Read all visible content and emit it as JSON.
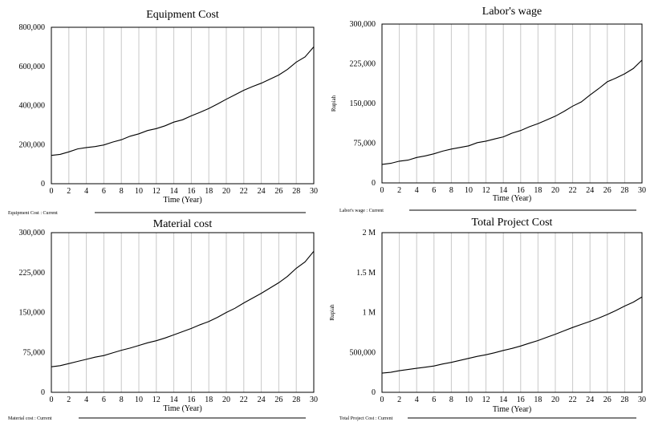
{
  "chart_data": [
    {
      "type": "line",
      "title": "Equipment Cost",
      "xlabel": "Time (Year)",
      "ylabel": "",
      "xlim": [
        0,
        30
      ],
      "ylim": [
        0,
        800000
      ],
      "x_ticks": [
        "0",
        "2",
        "4",
        "6",
        "8",
        "10",
        "12",
        "14",
        "16",
        "18",
        "20",
        "22",
        "24",
        "26",
        "28",
        "30"
      ],
      "y_ticks": [
        {
          "value": 0,
          "label": "0"
        },
        {
          "value": 200000,
          "label": "200,000"
        },
        {
          "value": 400000,
          "label": "400,000"
        },
        {
          "value": 600000,
          "label": "600,000"
        },
        {
          "value": 800000,
          "label": "800,000"
        }
      ],
      "grid": true,
      "legend": "Equipment Cost : Current",
      "x": [
        0,
        1,
        2,
        3,
        4,
        5,
        6,
        7,
        8,
        9,
        10,
        11,
        12,
        13,
        14,
        15,
        16,
        17,
        18,
        19,
        20,
        21,
        22,
        23,
        24,
        25,
        26,
        27,
        28,
        29,
        30
      ],
      "values": [
        145000,
        150000,
        163000,
        178000,
        185000,
        190000,
        198000,
        213000,
        225000,
        243000,
        255000,
        272000,
        282000,
        296000,
        315000,
        327000,
        347000,
        365000,
        385000,
        408000,
        432000,
        455000,
        478000,
        497000,
        514000,
        535000,
        556000,
        585000,
        622000,
        648000,
        700000
      ]
    },
    {
      "type": "line",
      "title": "Labor's wage",
      "xlabel": "Time (Year)",
      "ylabel": "Rupiah",
      "xlim": [
        0,
        30
      ],
      "ylim": [
        0,
        300000
      ],
      "x_ticks": [
        "0",
        "2",
        "4",
        "6",
        "8",
        "10",
        "12",
        "14",
        "16",
        "18",
        "20",
        "22",
        "24",
        "26",
        "28",
        "30"
      ],
      "y_ticks": [
        {
          "value": 0,
          "label": "0"
        },
        {
          "value": 75000,
          "label": "75,000"
        },
        {
          "value": 150000,
          "label": "150,000"
        },
        {
          "value": 225000,
          "label": "225,000"
        },
        {
          "value": 300000,
          "label": "300,000"
        }
      ],
      "grid": true,
      "legend": "Labor's wage : Current",
      "x": [
        0,
        1,
        2,
        3,
        4,
        5,
        6,
        7,
        8,
        9,
        10,
        11,
        12,
        13,
        14,
        15,
        16,
        17,
        18,
        19,
        20,
        21,
        22,
        23,
        24,
        25,
        26,
        27,
        28,
        29,
        30
      ],
      "values": [
        35000,
        37000,
        41000,
        43000,
        48000,
        51000,
        55000,
        60000,
        64000,
        67000,
        70000,
        76000,
        79000,
        83000,
        87000,
        94000,
        99000,
        106000,
        112000,
        119000,
        126000,
        135000,
        145000,
        153000,
        166000,
        178000,
        191000,
        198000,
        206000,
        216000,
        232000
      ]
    },
    {
      "type": "line",
      "title": "Material cost",
      "xlabel": "Time (Year)",
      "ylabel": "",
      "xlim": [
        0,
        30
      ],
      "ylim": [
        0,
        300000
      ],
      "x_ticks": [
        "0",
        "2",
        "4",
        "6",
        "8",
        "10",
        "12",
        "14",
        "16",
        "18",
        "20",
        "22",
        "24",
        "26",
        "28",
        "30"
      ],
      "y_ticks": [
        {
          "value": 0,
          "label": "0"
        },
        {
          "value": 75000,
          "label": "75,000"
        },
        {
          "value": 150000,
          "label": "150,000"
        },
        {
          "value": 225000,
          "label": "225,000"
        },
        {
          "value": 300000,
          "label": "300,000"
        }
      ],
      "grid": true,
      "legend": "Material cost : Current",
      "x": [
        0,
        1,
        2,
        3,
        4,
        5,
        6,
        7,
        8,
        9,
        10,
        11,
        12,
        13,
        14,
        15,
        16,
        17,
        18,
        19,
        20,
        21,
        22,
        23,
        24,
        25,
        26,
        27,
        28,
        29,
        30
      ],
      "values": [
        48000,
        50000,
        54000,
        58000,
        62000,
        66000,
        69000,
        74000,
        79000,
        83000,
        88000,
        93000,
        97000,
        102000,
        108000,
        114000,
        120000,
        127000,
        133000,
        141000,
        150000,
        158000,
        168000,
        177000,
        186000,
        196000,
        206000,
        218000,
        233000,
        245000,
        265000
      ]
    },
    {
      "type": "line",
      "title": "Total Project Cost",
      "xlabel": "Time (Year)",
      "ylabel": "Rupiah",
      "xlim": [
        0,
        30
      ],
      "ylim": [
        0,
        2000000
      ],
      "x_ticks": [
        "0",
        "2",
        "4",
        "6",
        "8",
        "10",
        "12",
        "14",
        "16",
        "18",
        "20",
        "22",
        "24",
        "26",
        "28",
        "30"
      ],
      "y_ticks": [
        {
          "value": 0,
          "label": "0"
        },
        {
          "value": 500000,
          "label": "500,000"
        },
        {
          "value": 1000000,
          "label": "1 M"
        },
        {
          "value": 1500000,
          "label": "1.5 M"
        },
        {
          "value": 2000000,
          "label": "2 M"
        }
      ],
      "grid": true,
      "legend": "Total Project Cost : Current",
      "x": [
        0,
        1,
        2,
        3,
        4,
        5,
        6,
        7,
        8,
        9,
        10,
        11,
        12,
        13,
        14,
        15,
        16,
        17,
        18,
        19,
        20,
        21,
        22,
        23,
        24,
        25,
        26,
        27,
        28,
        29,
        30
      ],
      "values": [
        240000,
        250000,
        270000,
        285000,
        300000,
        315000,
        330000,
        355000,
        375000,
        400000,
        425000,
        450000,
        470000,
        495000,
        525000,
        550000,
        580000,
        615000,
        648000,
        688000,
        728000,
        770000,
        812000,
        850000,
        888000,
        930000,
        975000,
        1025000,
        1080000,
        1130000,
        1195000
      ]
    }
  ]
}
